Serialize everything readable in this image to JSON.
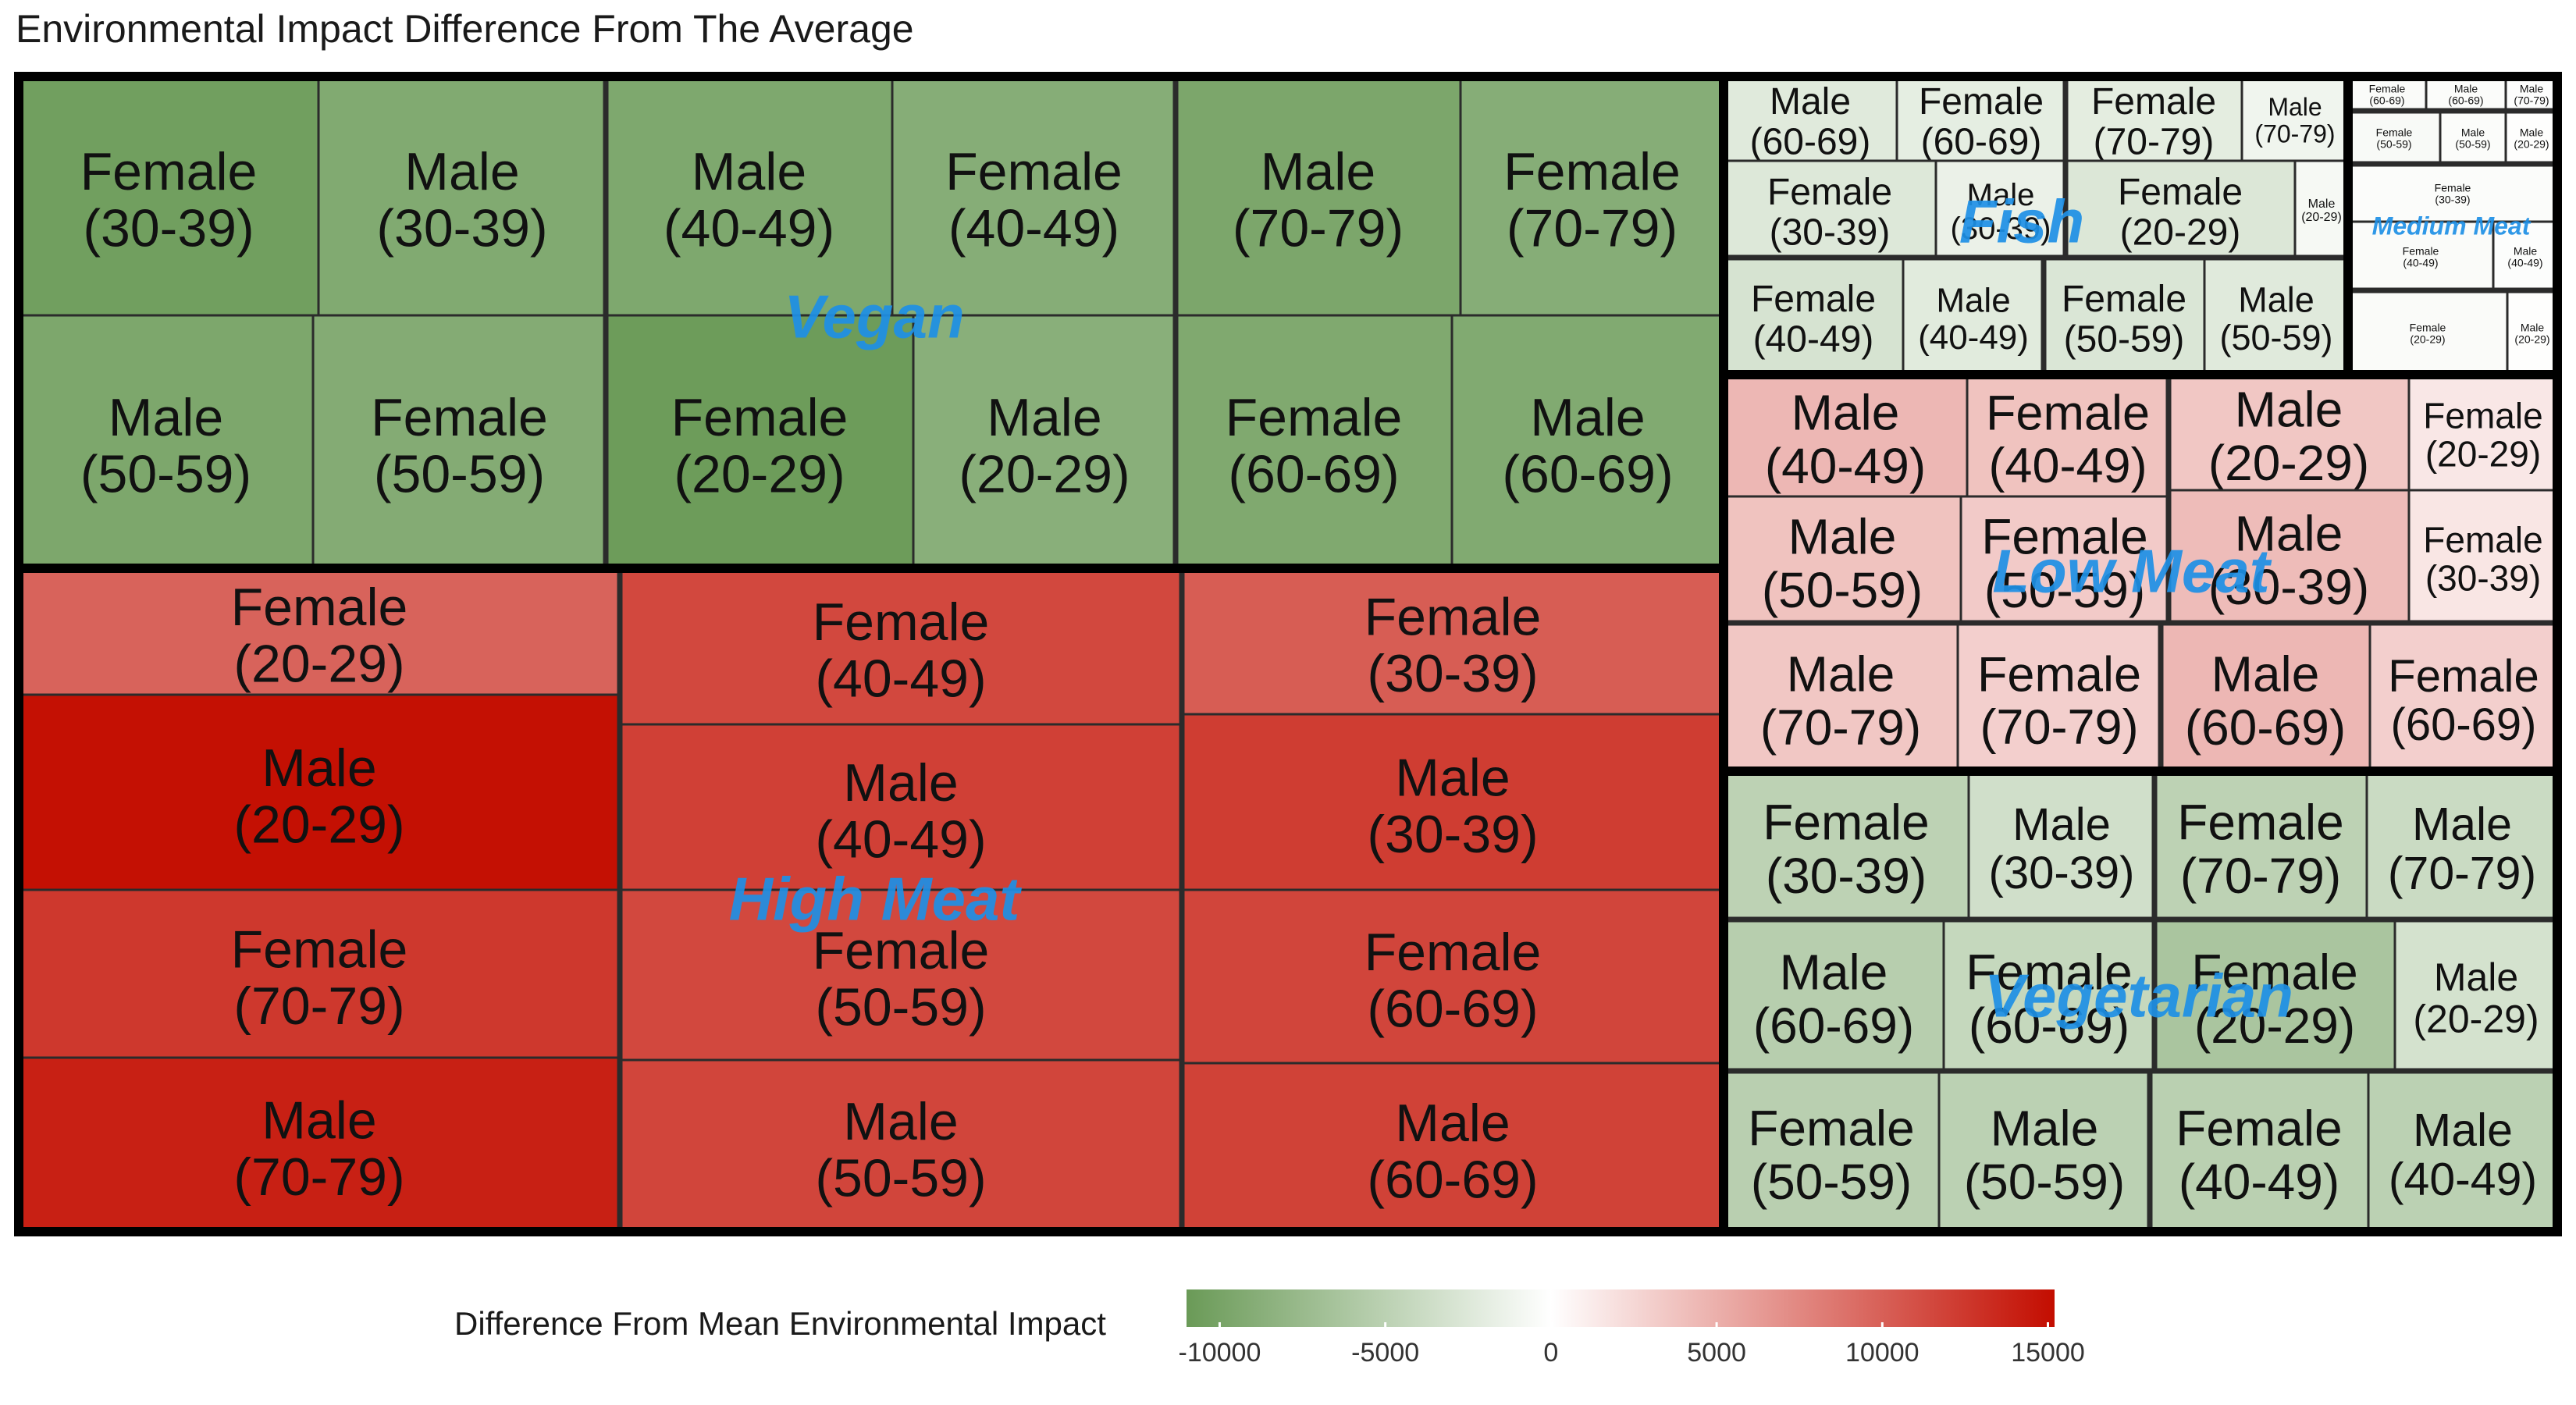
{
  "title": "Environmental Impact Difference From The Average",
  "chart_data": {
    "type": "treemap",
    "title": "Environmental Impact Difference From The Average",
    "legend": {
      "title": "Difference From Mean Environmental Impact",
      "ticks": [
        -10000,
        -5000,
        0,
        5000,
        10000,
        15000
      ],
      "tick_labels": [
        "-10000",
        "-5000",
        "0",
        "5000",
        "10000",
        "15000"
      ],
      "range": [
        -11000,
        15200
      ],
      "colors": {
        "low": "#6a9a57",
        "mid": "#ffffff",
        "high": "#c30d00"
      }
    },
    "groups": [
      {
        "name": "Vegan",
        "subgroups": [
          {
            "tiles": [
              {
                "label": "Female (30-39)",
                "value": -10500
              },
              {
                "label": "Male (30-39)",
                "value": -9300
              },
              {
                "label": "Male (50-59)",
                "value": -9600
              },
              {
                "label": "Female (50-59)",
                "value": -9100
              }
            ]
          },
          {
            "tiles": [
              {
                "label": "Male (40-49)",
                "value": -9500
              },
              {
                "label": "Female (40-49)",
                "value": -8900
              },
              {
                "label": "Female (20-29)",
                "value": -10800
              },
              {
                "label": "Male (20-29)",
                "value": -8700
              }
            ]
          },
          {
            "tiles": [
              {
                "label": "Male (70-79)",
                "value": -9700
              },
              {
                "label": "Female (70-79)",
                "value": -8900
              },
              {
                "label": "Female (60-69)",
                "value": -9400
              },
              {
                "label": "Male (60-69)",
                "value": -9300
              }
            ]
          }
        ]
      },
      {
        "name": "High Meat",
        "subgroups": [
          {
            "tiles": [
              {
                "label": "Female (20-29)",
                "value": 9800
              },
              {
                "label": "Male (20-29)",
                "value": 15000
              },
              {
                "label": "Female (70-79)",
                "value": 12500
              },
              {
                "label": "Male (70-79)",
                "value": 14000
              }
            ]
          },
          {
            "tiles": [
              {
                "label": "Female (40-49)",
                "value": 11500
              },
              {
                "label": "Male (40-49)",
                "value": 12000
              },
              {
                "label": "Female (50-59)",
                "value": 11500
              },
              {
                "label": "Male (50-59)",
                "value": 11700
              }
            ]
          },
          {
            "tiles": [
              {
                "label": "Female (30-39)",
                "value": 10200
              },
              {
                "label": "Male (30-39)",
                "value": 12200
              },
              {
                "label": "Female (60-69)",
                "value": 11700
              },
              {
                "label": "Male (60-69)",
                "value": 11900
              }
            ]
          }
        ]
      },
      {
        "name": "Fish",
        "subgroups": [
          {
            "tiles": [
              {
                "label": "Male (60-69)",
                "value": -2300
              },
              {
                "label": "Female (60-69)",
                "value": -1900
              },
              {
                "label": "Female (30-39)",
                "value": -2500
              },
              {
                "label": "Male (30-39)",
                "value": -1500
              }
            ]
          },
          {
            "tiles": [
              {
                "label": "Female (70-79)",
                "value": -2000
              },
              {
                "label": "Male (70-79)",
                "value": -1100
              },
              {
                "label": "Female (20-29)",
                "value": -2600
              },
              {
                "label": "Male (20-29)",
                "value": -700
              }
            ]
          },
          {
            "tiles": [
              {
                "label": "Female (40-49)",
                "value": -3000
              },
              {
                "label": "Male (40-49)",
                "value": -2200
              }
            ]
          },
          {
            "tiles": [
              {
                "label": "Female (50-59)",
                "value": -2700
              },
              {
                "label": "Male (50-59)",
                "value": -2300
              }
            ]
          }
        ]
      },
      {
        "name": "Medium Meat",
        "subgroups": [
          {
            "tiles": [
              {
                "label": "Female (60-69)",
                "value": -400
              },
              {
                "label": "Male (60-69)",
                "value": -300
              },
              {
                "label": "Male (70-79)",
                "value": -200
              }
            ]
          },
          {
            "tiles": [
              {
                "label": "Female (50-59)",
                "value": -500
              },
              {
                "label": "Male (50-59)",
                "value": -300
              },
              {
                "label": "Male (20-29)",
                "value": -100
              }
            ]
          },
          {
            "tiles": [
              {
                "label": "Female (30-39)",
                "value": -300
              },
              {
                "label": "Female (40-49)",
                "value": -400
              },
              {
                "label": "Male (40-49)",
                "value": -200
              }
            ]
          },
          {
            "tiles": [
              {
                "label": "Female (20-29)",
                "value": -400
              },
              {
                "label": "Male (20-29)",
                "value": -100
              }
            ]
          }
        ]
      },
      {
        "name": "Low Meat",
        "subgroups": [
          {
            "tiles": [
              {
                "label": "Male (40-49)",
                "value": 4500
              },
              {
                "label": "Female (40-49)",
                "value": 3800
              },
              {
                "label": "Male (50-59)",
                "value": 3800
              },
              {
                "label": "Female (50-59)",
                "value": 3300
              }
            ]
          },
          {
            "tiles": [
              {
                "label": "Male (20-29)",
                "value": 3500
              },
              {
                "label": "Female (20-29)",
                "value": 1500
              },
              {
                "label": "Male (30-39)",
                "value": 4200
              },
              {
                "label": "Female (30-39)",
                "value": 1600
              }
            ]
          },
          {
            "tiles": [
              {
                "label": "Male (70-79)",
                "value": 3500
              },
              {
                "label": "Female (70-79)",
                "value": 3000
              }
            ]
          },
          {
            "tiles": [
              {
                "label": "Male (60-69)",
                "value": 4500
              },
              {
                "label": "Female (60-69)",
                "value": 3000
              }
            ]
          }
        ]
      },
      {
        "name": "Vegetarian",
        "subgroups": [
          {
            "tiles": [
              {
                "label": "Female (30-39)",
                "value": -4900
              },
              {
                "label": "Male (30-39)",
                "value": -3500
              }
            ]
          },
          {
            "tiles": [
              {
                "label": "Female (70-79)",
                "value": -4900
              },
              {
                "label": "Male (70-79)",
                "value": -3900
              }
            ]
          },
          {
            "tiles": [
              {
                "label": "Male (60-69)",
                "value": -5300
              },
              {
                "label": "Female (60-69)",
                "value": -4300
              }
            ]
          },
          {
            "tiles": [
              {
                "label": "Female (20-29)",
                "value": -6300
              },
              {
                "label": "Male (20-29)",
                "value": -3200
              }
            ]
          },
          {
            "tiles": [
              {
                "label": "Female (50-59)",
                "value": -5200
              },
              {
                "label": "Male (50-59)",
                "value": -5000
              }
            ]
          },
          {
            "tiles": [
              {
                "label": "Female (40-49)",
                "value": -5100
              },
              {
                "label": "Male (40-49)",
                "value": -5000
              }
            ]
          }
        ]
      }
    ]
  }
}
